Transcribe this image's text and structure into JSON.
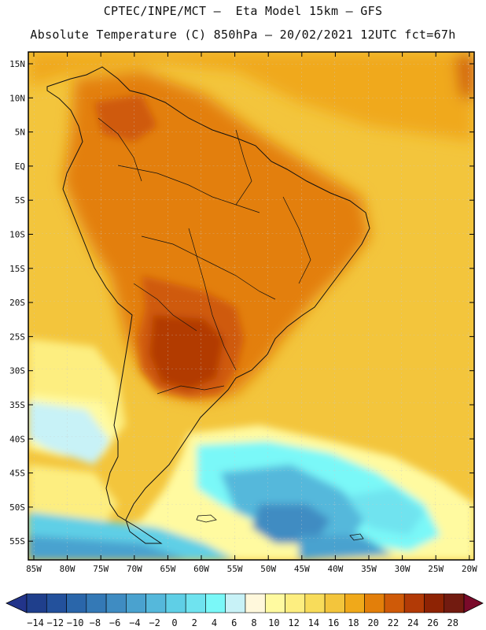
{
  "title": {
    "line1": "CPTEC/INPE/MCT –  Eta Model 15km – GFS",
    "line2": "Absolute Temperature (C) 850hPa – 20/02/2021 12UTC fct=67h"
  },
  "map": {
    "region": "South America",
    "lon_range": [
      -86,
      -20
    ],
    "lat_range": [
      -58,
      17
    ],
    "lat_ticks": [
      "15N",
      "10N",
      "5N",
      "EQ",
      "5S",
      "10S",
      "15S",
      "20S",
      "25S",
      "30S",
      "35S",
      "40S",
      "45S",
      "50S",
      "55S"
    ],
    "lon_ticks": [
      "85W",
      "80W",
      "75W",
      "70W",
      "65W",
      "60W",
      "55W",
      "50W",
      "45W",
      "40W",
      "35W",
      "30W",
      "25W",
      "20W"
    ]
  },
  "colorbar": {
    "labels": [
      "-14",
      "-12",
      "-10",
      "-8",
      "-6",
      "-4",
      "-2",
      "0",
      "2",
      "4",
      "6",
      "8",
      "10",
      "12",
      "14",
      "16",
      "18",
      "20",
      "22",
      "24",
      "26",
      "28"
    ],
    "colors": [
      "#1f3f8c",
      "#23519c",
      "#2a66aa",
      "#3479b6",
      "#3f8cc2",
      "#4aa2cf",
      "#55b8db",
      "#5fcfe6",
      "#6fe3ef",
      "#7af8f8",
      "#c8f2f7",
      "#fff8dc",
      "#fffaa0",
      "#fdee80",
      "#f8dc5a",
      "#f3c53c",
      "#f0a91a",
      "#e37f0a",
      "#cf5a08",
      "#b23a06",
      "#8e2304",
      "#721b10"
    ],
    "under_color": "#22348a",
    "over_color": "#7a0a2a"
  },
  "legend": {
    "field": "Absolute Temperature (C) 850hPa",
    "units": "C"
  }
}
